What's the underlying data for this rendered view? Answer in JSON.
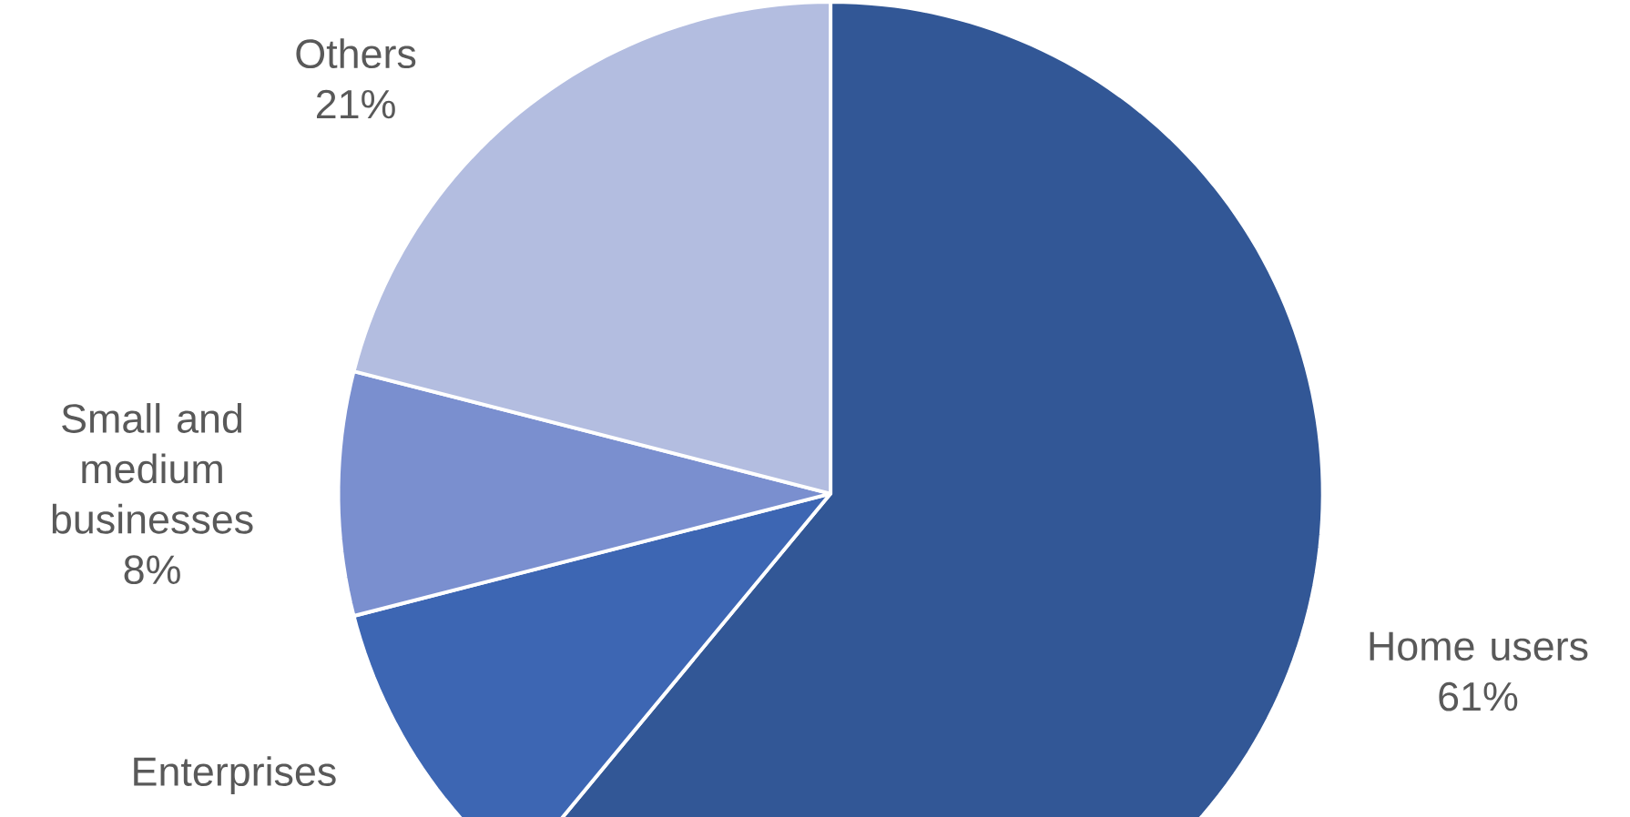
{
  "chart_data": {
    "type": "pie",
    "categories": [
      "Home users",
      "Enterprises",
      "Small and medium businesses",
      "Others"
    ],
    "values": [
      61,
      10,
      8,
      21
    ],
    "value_labels": [
      "61%",
      null,
      "8%",
      "21%"
    ],
    "colors": [
      "#325796",
      "#3d66b3",
      "#7a8fcf",
      "#b3bde0"
    ]
  }
}
